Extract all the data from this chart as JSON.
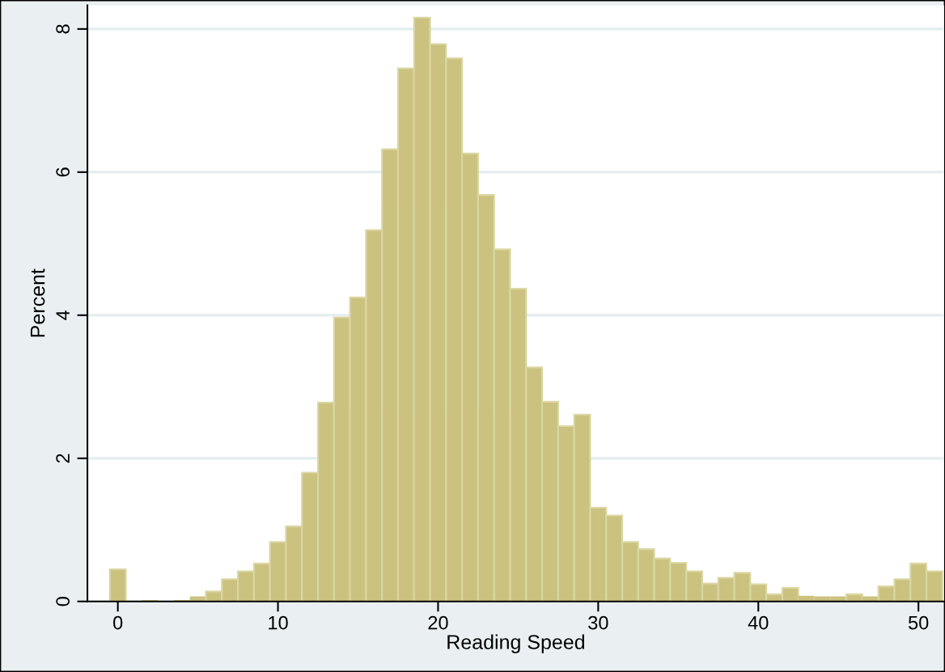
{
  "chart_data": {
    "type": "histogram",
    "xlabel": "Reading Speed",
    "ylabel": "Percent",
    "bins": [
      -0.5,
      0.5,
      1.5,
      2.5,
      3.5,
      4.5,
      5.5,
      6.5,
      7.5,
      8.5,
      9.5,
      10.5,
      11.5,
      12.5,
      13.5,
      14.5,
      15.5,
      16.5,
      17.5,
      18.5,
      19.5,
      20.5,
      21.5,
      22.5,
      23.5,
      24.5,
      25.5,
      26.5,
      27.5,
      28.5,
      29.5,
      30.5,
      31.5,
      32.5,
      33.5,
      34.5,
      35.5,
      36.5,
      37.5,
      38.5,
      39.5,
      40.5,
      41.5,
      42.5,
      43.5,
      44.5,
      45.5,
      46.5,
      47.5,
      48.5,
      49.5,
      50.5,
      51.5
    ],
    "values": [
      0.45,
      0,
      0.02,
      0,
      0.02,
      0.07,
      0.14,
      0.31,
      0.42,
      0.53,
      0.83,
      1.05,
      1.8,
      2.78,
      3.97,
      4.25,
      5.19,
      6.32,
      7.45,
      8.16,
      7.79,
      7.59,
      6.26,
      5.68,
      4.92,
      4.37,
      3.27,
      2.79,
      2.45,
      2.61,
      1.31,
      1.2,
      0.83,
      0.73,
      0.6,
      0.54,
      0.42,
      0.25,
      0.33,
      0.4,
      0.24,
      0.1,
      0.19,
      0.08,
      0.07,
      0.07,
      0.1,
      0.07,
      0.21,
      0.31,
      0.53,
      0.42
    ],
    "color": "#cbc280",
    "xlim": [
      -1.9,
      51.6
    ],
    "ylim": [
      0,
      8.33
    ],
    "xticks": [
      0,
      10,
      20,
      30,
      40,
      50
    ],
    "yticks": [
      0,
      2,
      4,
      6,
      8
    ],
    "grid": "y"
  }
}
